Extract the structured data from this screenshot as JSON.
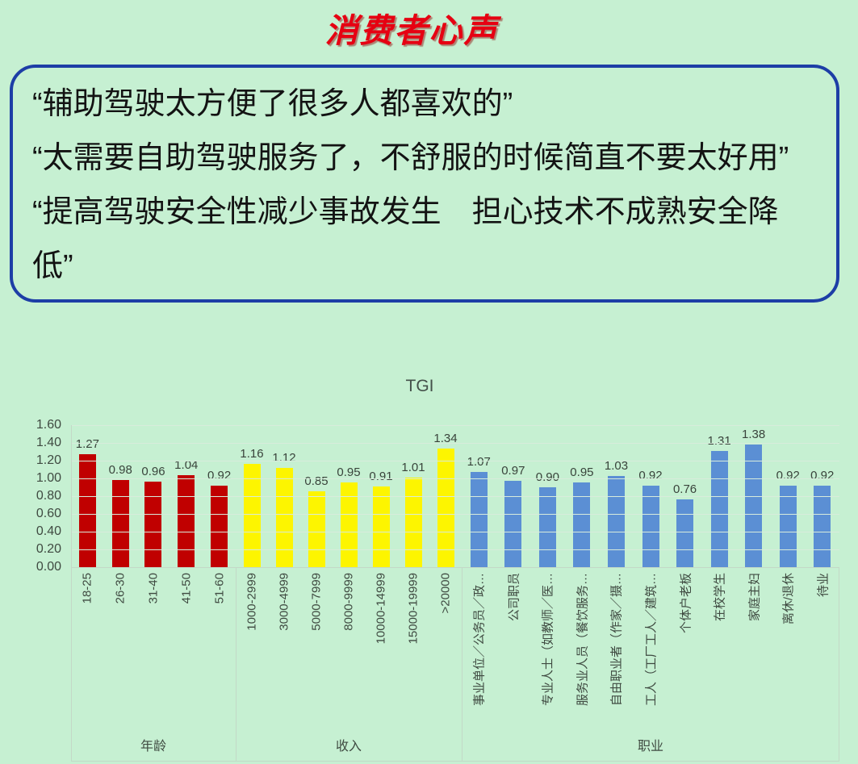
{
  "page": {
    "background_color": "#c6f0d2"
  },
  "title": "消费者心声",
  "quote_box": {
    "border_color": "#1d3ea6",
    "quotes": [
      "“辅助驾驶太方便了很多人都喜欢的”",
      "“太需要自助驾驶服务了，不舒服的时候简直不要太好用”",
      "“提高驾驶安全性减少事故发生　担心技术不成熟安全降低”"
    ]
  },
  "chart_data": {
    "type": "bar",
    "title": "TGI",
    "xlabel": "",
    "ylabel": "",
    "ylim": [
      0,
      1.6
    ],
    "ytick_labels": [
      "0.00",
      "0.20",
      "0.40",
      "0.60",
      "0.80",
      "1.00",
      "1.20",
      "1.40",
      "1.60"
    ],
    "grid": true,
    "legend": "none",
    "value_labels_decimals": 2,
    "groups": [
      {
        "label": "年龄",
        "color": "#c00000",
        "categories": [
          "18-25",
          "26-30",
          "31-40",
          "41-50",
          "51-60"
        ],
        "values": [
          1.27,
          0.98,
          0.96,
          1.04,
          0.92
        ]
      },
      {
        "label": "收入",
        "color": "#fdf500",
        "categories": [
          "1000-2999",
          "3000-4999",
          "5000-7999",
          "8000-9999",
          "10000-14999",
          "15000-19999",
          ">20000"
        ],
        "values": [
          1.16,
          1.12,
          0.85,
          0.95,
          0.91,
          1.01,
          1.34
        ]
      },
      {
        "label": "职业",
        "color": "#5b8fd4",
        "categories": [
          "事业单位／公务员／政…",
          "公司职员",
          "专业人士（如教师／医…",
          "服务业人员（餐饮服务…",
          "自由职业者（作家／摄…",
          "工人（工厂工人／建筑…",
          "个体户老板",
          "在校学生",
          "家庭主妇",
          "离休/退休",
          "待业"
        ],
        "values": [
          1.07,
          0.97,
          0.9,
          0.95,
          1.03,
          0.92,
          0.76,
          1.31,
          1.38,
          0.92,
          0.92
        ]
      }
    ]
  }
}
